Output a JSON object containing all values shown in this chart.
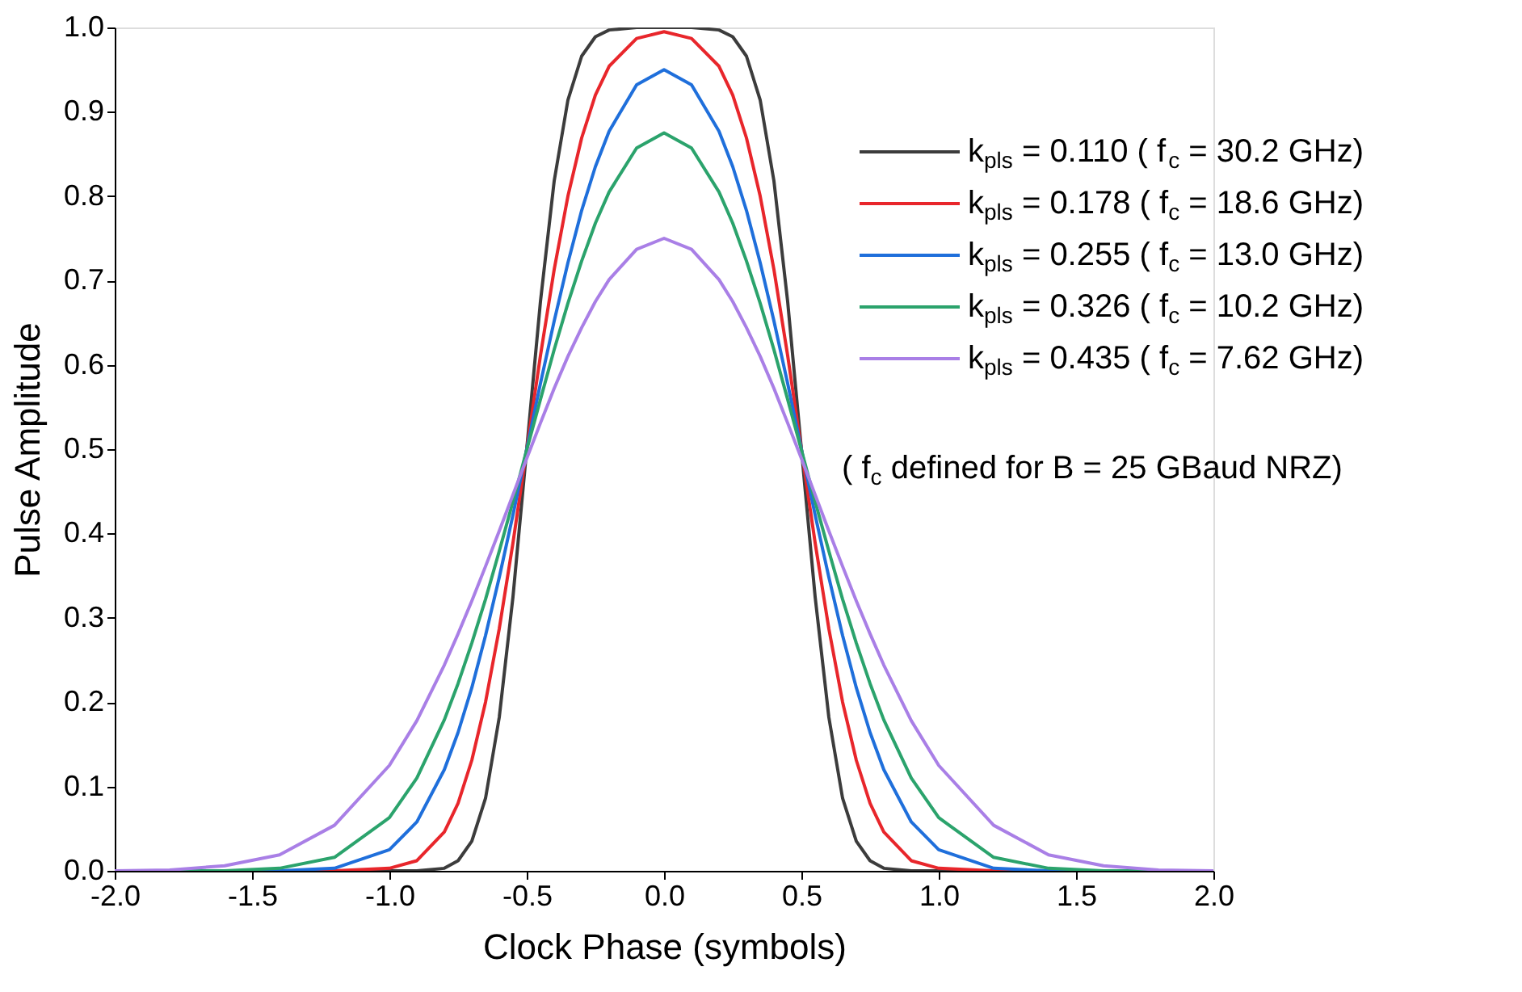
{
  "chart_data": {
    "type": "line",
    "xlabel": "Clock Phase (symbols)",
    "ylabel": "Pulse Amplitude",
    "x": [
      -2.0,
      -1.8,
      -1.6,
      -1.4,
      -1.2,
      -1.0,
      -0.9,
      -0.8,
      -0.75,
      -0.7,
      -0.65,
      -0.6,
      -0.55,
      -0.5,
      -0.45,
      -0.4,
      -0.35,
      -0.3,
      -0.25,
      -0.2,
      -0.1,
      0.0,
      0.1,
      0.2,
      0.25,
      0.3,
      0.35,
      0.4,
      0.45,
      0.5,
      0.55,
      0.6,
      0.65,
      0.7,
      0.75,
      0.8,
      0.9,
      1.0,
      1.2,
      1.4,
      1.6,
      1.8,
      2.0
    ],
    "series": [
      {
        "name": "k$_{pls}$ = 0.110 ( f$_{c}$ = 30.2 GHz)",
        "color": "#3c3c3c",
        "values": [
          0,
          0,
          0,
          0,
          0,
          0,
          0,
          0.003,
          0.012,
          0.035,
          0.086,
          0.182,
          0.325,
          0.5,
          0.675,
          0.818,
          0.914,
          0.966,
          0.989,
          0.997,
          1.0,
          1.0,
          1.0,
          0.997,
          0.989,
          0.966,
          0.914,
          0.818,
          0.675,
          0.5,
          0.325,
          0.182,
          0.086,
          0.035,
          0.012,
          0.003,
          0,
          0,
          0,
          0,
          0,
          0,
          0
        ]
      },
      {
        "name": "k$_{pls}$ = 0.178 ( f$_{c}$ = 18.6 GHz)",
        "color": "#e8262b",
        "values": [
          null,
          null,
          null,
          0,
          0,
          0.003,
          0.012,
          0.046,
          0.08,
          0.131,
          0.2,
          0.287,
          0.389,
          0.5,
          0.611,
          0.713,
          0.8,
          0.869,
          0.92,
          0.954,
          0.987,
          0.995,
          0.987,
          0.954,
          0.92,
          0.869,
          0.8,
          0.713,
          0.611,
          0.5,
          0.389,
          0.287,
          0.2,
          0.131,
          0.08,
          0.046,
          0.012,
          0.003,
          0,
          0,
          null,
          null,
          null
        ]
      },
      {
        "name": "k$_{pls}$ = 0.255 ( f$_{c}$ = 13.0 GHz)",
        "color": "#1f6fdb",
        "values": [
          null,
          null,
          0,
          0,
          0.003,
          0.025,
          0.058,
          0.12,
          0.164,
          0.217,
          0.279,
          0.348,
          0.422,
          0.5,
          0.578,
          0.652,
          0.721,
          0.783,
          0.835,
          0.877,
          0.932,
          0.95,
          0.932,
          0.877,
          0.835,
          0.783,
          0.721,
          0.652,
          0.578,
          0.5,
          0.422,
          0.348,
          0.279,
          0.217,
          0.164,
          0.12,
          0.058,
          0.025,
          0.003,
          0,
          0,
          null,
          null
        ]
      },
      {
        "name": "k$_{pls}$ = 0.326 ( f$_{c}$ = 10.2 GHz)",
        "color": "#2ba36c",
        "values": [
          0,
          0,
          0,
          0.003,
          0.016,
          0.063,
          0.11,
          0.179,
          0.222,
          0.27,
          0.322,
          0.379,
          0.438,
          0.499,
          0.559,
          0.618,
          0.673,
          0.723,
          0.768,
          0.805,
          0.857,
          0.875,
          0.857,
          0.805,
          0.768,
          0.723,
          0.673,
          0.618,
          0.559,
          0.499,
          0.438,
          0.379,
          0.322,
          0.27,
          0.222,
          0.179,
          0.11,
          0.063,
          0.016,
          0.003,
          0,
          0,
          0
        ]
      },
      {
        "name": "k$_{pls}$ = 0.435 ( f$_{c}$ = 7.62 GHz)",
        "color": "#a97fe6",
        "values": [
          0,
          0.001,
          0.006,
          0.019,
          0.054,
          0.125,
          0.178,
          0.244,
          0.281,
          0.32,
          0.361,
          0.403,
          0.446,
          0.489,
          0.531,
          0.572,
          0.61,
          0.644,
          0.675,
          0.701,
          0.737,
          0.75,
          0.737,
          0.701,
          0.675,
          0.644,
          0.61,
          0.572,
          0.531,
          0.489,
          0.446,
          0.403,
          0.361,
          0.32,
          0.281,
          0.244,
          0.178,
          0.125,
          0.054,
          0.019,
          0.006,
          0.001,
          0
        ]
      }
    ],
    "xlim": [
      -2.0,
      2.0
    ],
    "xticks": [
      {
        "value": -2.0,
        "label": "-2.0"
      },
      {
        "value": -1.5,
        "label": "-1.5"
      },
      {
        "value": -1.0,
        "label": "-1.0"
      },
      {
        "value": -0.5,
        "label": "-0.5"
      },
      {
        "value": 0.0,
        "label": "0.0"
      },
      {
        "value": 0.5,
        "label": "0.5"
      },
      {
        "value": 1.0,
        "label": "1.0"
      },
      {
        "value": 1.5,
        "label": "1.5"
      },
      {
        "value": 2.0,
        "label": "2.0"
      }
    ],
    "ylim": [
      0.0,
      1.0
    ],
    "yticks": [
      {
        "value": 0.0,
        "label": "0.0"
      },
      0.1,
      0.2,
      0.3,
      0.4,
      0.5,
      0.6,
      0.7,
      0.8,
      0.9,
      {
        "value": 1.0,
        "label": "1.0"
      }
    ],
    "annotations": [
      "( f$_{c}$ defined for B = 25 GBaud NRZ)"
    ],
    "legend": "top right",
    "grid": false,
    "marker": "none",
    "line_style": "solid"
  }
}
